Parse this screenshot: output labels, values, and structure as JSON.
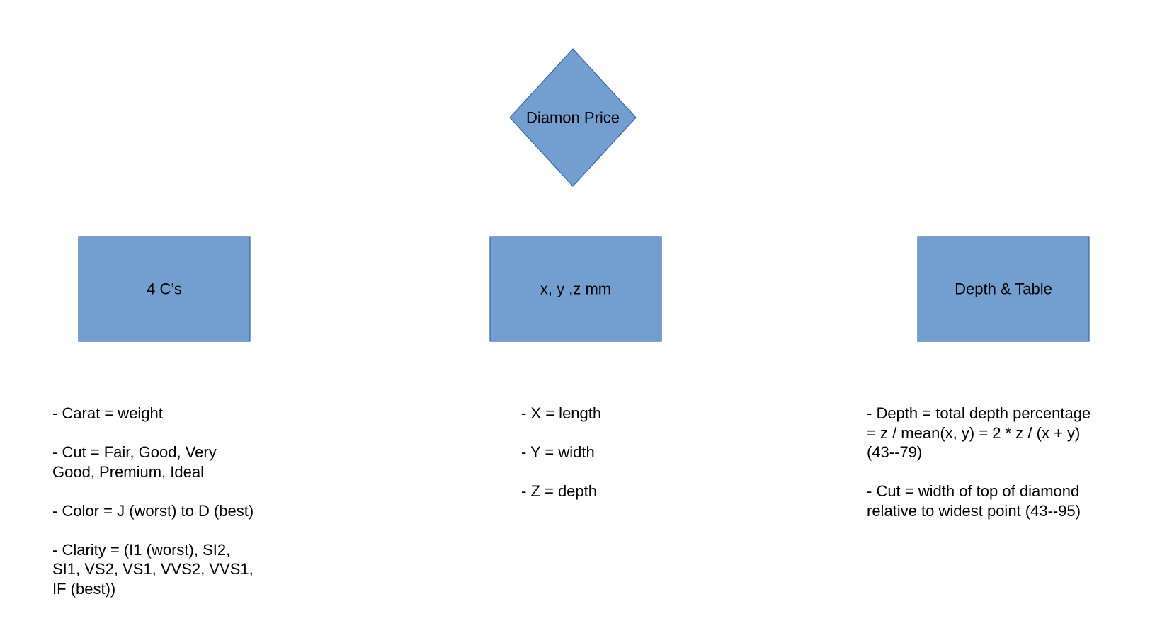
{
  "colors": {
    "shape_fill": "#729fcf",
    "shape_stroke": "#3465a4",
    "text": "#000000",
    "background": "#ffffff"
  },
  "root": {
    "label": "Diamon Price",
    "shape": "diamond"
  },
  "categories": [
    {
      "label": "4 C’s",
      "shape": "rectangle",
      "notes": [
        [
          "- Carat = weight"
        ],
        [
          "- Cut = Fair, Good, Very",
          "Good, Premium, Ideal"
        ],
        [
          "- Color = J (worst) to D (best)"
        ],
        [
          "- Clarity = (I1 (worst), SI2,",
          "SI1, VS2, VS1, VVS2, VVS1,",
          "IF (best))"
        ]
      ]
    },
    {
      "label": "x, y ,z mm",
      "shape": "rectangle",
      "notes": [
        [
          "- X = length"
        ],
        [
          "- Y = width"
        ],
        [
          "- Z = depth"
        ]
      ]
    },
    {
      "label": "Depth & Table",
      "shape": "rectangle",
      "notes": [
        [
          "- Depth = total depth percentage",
          "= z / mean(x, y) = 2 * z / (x + y)",
          "(43--79)"
        ],
        [
          "- Cut = width of top of diamond",
          "relative to widest point (43--95)"
        ]
      ]
    }
  ]
}
